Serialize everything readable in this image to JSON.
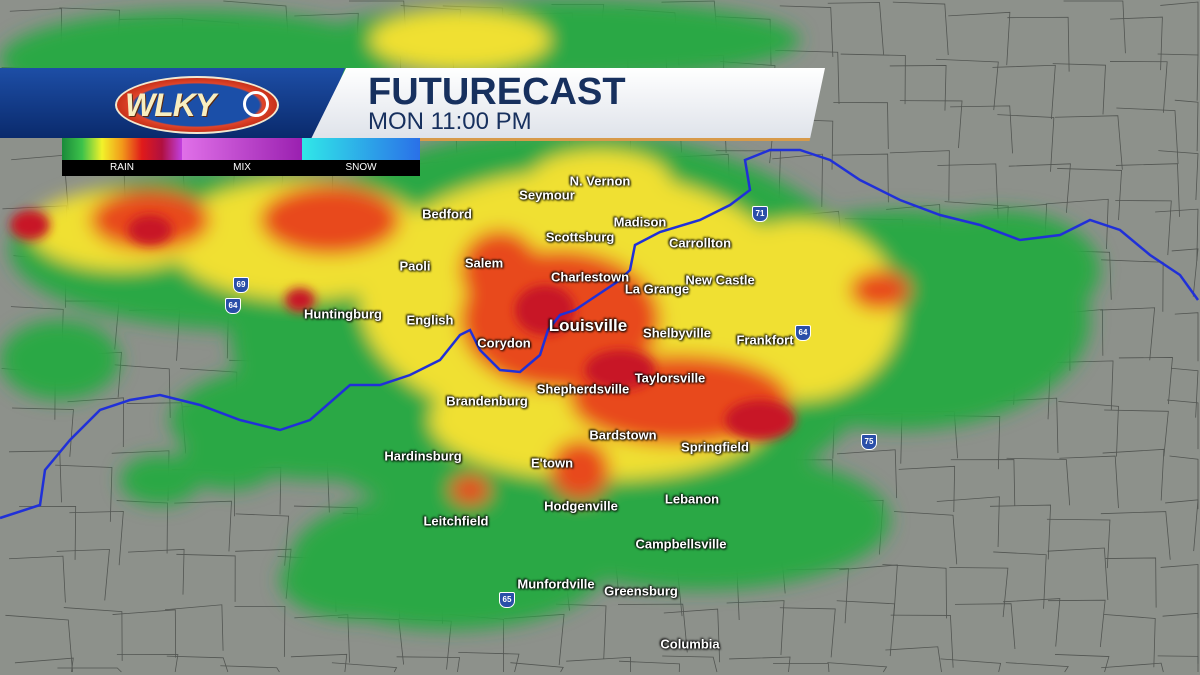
{
  "header": {
    "logo_text": "WLKY",
    "title": "FUTURECAST",
    "subtitle": "MON 11:00 PM"
  },
  "legend": {
    "items": [
      {
        "label": "RAIN",
        "colors": [
          "#1a8a3a",
          "#3cc24a",
          "#f2f22a",
          "#f29a1a",
          "#e01a1a",
          "#b01040",
          "#c040e0"
        ]
      },
      {
        "label": "MIX",
        "colors": [
          "#e070e8",
          "#9a20b0"
        ]
      },
      {
        "label": "SNOW",
        "colors": [
          "#30e8e8",
          "#2a70e8"
        ]
      }
    ]
  },
  "colors": {
    "ground": "#8d918b",
    "river": "#2030d8",
    "rain_light": "#2aa845",
    "rain_moderate": "#f0e030",
    "rain_heavy": "#e84a1a",
    "rain_intense": "#c81428"
  },
  "cities": [
    {
      "name": "Seymour"
    },
    {
      "name": "N. Vernon"
    },
    {
      "name": "Bedford"
    },
    {
      "name": "Madison"
    },
    {
      "name": "Scottsburg"
    },
    {
      "name": "Carrollton"
    },
    {
      "name": "Paoli"
    },
    {
      "name": "Salem"
    },
    {
      "name": "Charlestown"
    },
    {
      "name": "New Castle"
    },
    {
      "name": "La Grange"
    },
    {
      "name": "Huntingburg"
    },
    {
      "name": "English"
    },
    {
      "name": "Louisville"
    },
    {
      "name": "Shelbyville"
    },
    {
      "name": "Frankfort"
    },
    {
      "name": "Corydon"
    },
    {
      "name": "Taylorsville"
    },
    {
      "name": "Shepherdsville"
    },
    {
      "name": "Brandenburg"
    },
    {
      "name": "Bardstown"
    },
    {
      "name": "Springfield"
    },
    {
      "name": "Hardinsburg"
    },
    {
      "name": "E'town"
    },
    {
      "name": "Lebanon"
    },
    {
      "name": "Hodgenville"
    },
    {
      "name": "Leitchfield"
    },
    {
      "name": "Campbellsville"
    },
    {
      "name": "Munfordville"
    },
    {
      "name": "Greensburg"
    },
    {
      "name": "Columbia"
    }
  ],
  "highways": [
    "69",
    "64",
    "71",
    "64",
    "75",
    "65"
  ]
}
